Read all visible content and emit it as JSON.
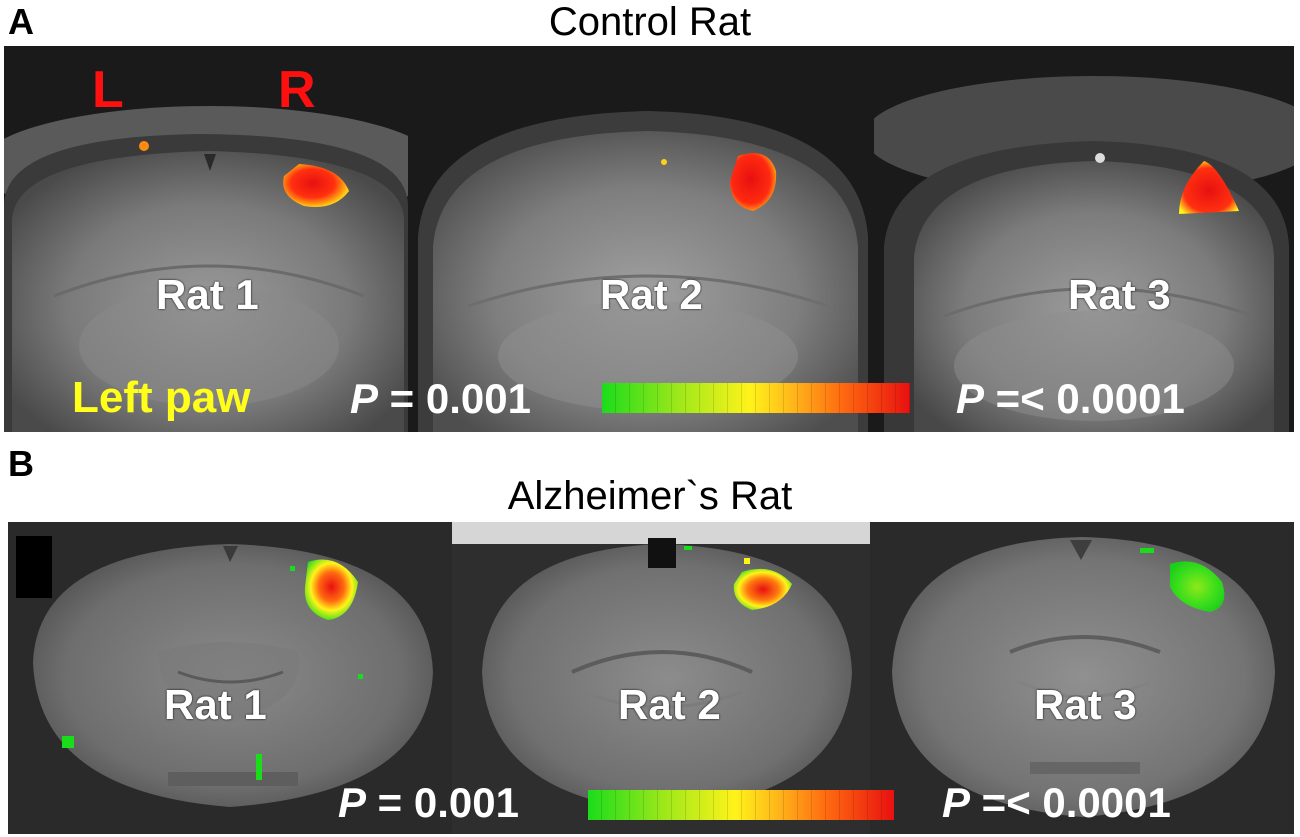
{
  "panel_a": {
    "letter": "A",
    "title": "Control Rat",
    "left_label": "L",
    "right_label": "R",
    "rats": [
      "Rat 1",
      "Rat 2",
      "Rat 3"
    ],
    "paw_label": "Left  paw",
    "p_low_symbol": "P",
    "p_low_value": " = 0.001",
    "p_high_symbol": "P",
    "p_high_value": " =< 0.0001"
  },
  "panel_b": {
    "letter": "B",
    "title": "Alzheimer`s Rat",
    "rats": [
      "Rat 1",
      "Rat 2",
      "Rat 3"
    ],
    "p_low_symbol": "P",
    "p_low_value": " = 0.001",
    "p_high_symbol": "P",
    "p_high_value": " =< 0.0001"
  },
  "colors": {
    "colorbar_low": "#1bdc1b",
    "colorbar_mid": "#fff31a",
    "colorbar_high": "#e81010",
    "lr_label": "#ff1010",
    "paw_label": "#ffff1a"
  }
}
